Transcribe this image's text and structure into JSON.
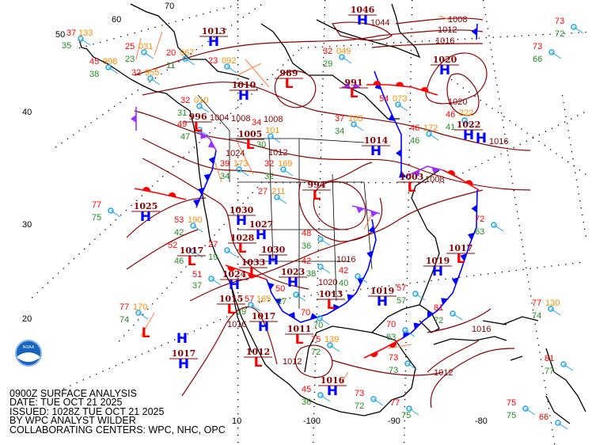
{
  "caption": {
    "title": "0900Z SURFACE ANALYSIS",
    "date": "DATE: TUE OCT 21 2025",
    "issued": "ISSUED: 1028Z TUE OCT 21 2025",
    "analyst": "BY WPC ANALYST WILDER",
    "centers": "COLLABORATING CENTERS: WPC, NHC, OPC"
  },
  "logo": {
    "text": "NOAA"
  },
  "graticule_labels": [
    "70",
    "60",
    "50",
    "40",
    "30",
    "20",
    "10",
    "-100",
    "-90",
    "-80"
  ],
  "colors": {
    "high": "#0000ff",
    "low": "#ff0000",
    "isobar": "#8b0000",
    "temperature": "#ff0000",
    "dewpoint": "#228b22",
    "pressure": "#ff8c00",
    "cold_front": "#0000ff",
    "warm_front": "#ff0000",
    "occluded_front": "#9b30ff",
    "trough": "#ff7f3f",
    "station": "#1ea7e8"
  },
  "pressure_centers": [
    {
      "type": "H",
      "value": "1013"
    },
    {
      "type": "H",
      "value": "1010"
    },
    {
      "type": "L",
      "value": "1005"
    },
    {
      "type": "L",
      "value": "996"
    },
    {
      "type": "L",
      "value": "989"
    },
    {
      "type": "H",
      "value": "1046"
    },
    {
      "type": "H",
      "value": "1020"
    },
    {
      "type": "L",
      "value": "991"
    },
    {
      "type": "H",
      "value": "1014"
    },
    {
      "type": "H",
      "value": "1022"
    },
    {
      "type": "L",
      "value": "1003"
    },
    {
      "type": "L",
      "value": "994"
    },
    {
      "type": "H",
      "value": "1025"
    },
    {
      "type": "H",
      "value": "1030"
    },
    {
      "type": "H",
      "value": "1027"
    },
    {
      "type": "L",
      "value": "1028"
    },
    {
      "type": "H",
      "value": "1030"
    },
    {
      "type": "L",
      "value": "1033"
    },
    {
      "type": "H",
      "value": "1024"
    },
    {
      "type": "L",
      "value": "1017"
    },
    {
      "type": "H",
      "value": "1023"
    },
    {
      "type": "L",
      "value": "1015"
    },
    {
      "type": "L",
      "value": "1013"
    },
    {
      "type": "H",
      "value": "1019"
    },
    {
      "type": "H",
      "value": "1019"
    },
    {
      "type": "L",
      "value": "1017"
    },
    {
      "type": "L",
      "value": ""
    },
    {
      "type": "H",
      "value": ""
    },
    {
      "type": "H",
      "value": "1017"
    },
    {
      "type": "L",
      "value": "1011"
    },
    {
      "type": "H",
      "value": "1016"
    },
    {
      "type": "L",
      "value": "1012"
    },
    {
      "type": "H",
      "value": "1017"
    },
    {
      "type": "H",
      "value": ""
    }
  ],
  "isobar_labels": [
    "1008",
    "1012",
    "1016",
    "1020",
    "1044",
    "1008",
    "1012",
    "1016",
    "1024",
    "1020",
    "1016",
    "1016",
    "1012",
    "1008",
    "1016",
    "1012",
    "1004",
    "1008"
  ],
  "stations": [
    {
      "temp": "37",
      "dew": "35",
      "press": "133"
    },
    {
      "temp": "45",
      "dew": "38",
      "press": "998"
    },
    {
      "temp": "25",
      "dew": "23",
      "press": "031"
    },
    {
      "temp": "32",
      "dew": "",
      "press": "955"
    },
    {
      "temp": "20",
      "dew": "11",
      "press": "067"
    },
    {
      "temp": "23",
      "dew": "",
      "press": "092"
    },
    {
      "temp": "32",
      "dew": "31",
      "press": "010"
    },
    {
      "temp": "49",
      "dew": "47",
      "press": ""
    },
    {
      "temp": "34",
      "dew": "30",
      "press": "101"
    },
    {
      "temp": "39",
      "dew": "34",
      "press": "173"
    },
    {
      "temp": "32",
      "dew": "32",
      "press": "169"
    },
    {
      "temp": "27",
      "dew": "",
      "press": "211"
    },
    {
      "temp": "53",
      "dew": "42",
      "press": "190"
    },
    {
      "temp": "52",
      "dew": "46",
      "press": ""
    },
    {
      "temp": "27",
      "dew": "19",
      "press": ""
    },
    {
      "temp": "51",
      "dew": "37",
      "press": ""
    },
    {
      "temp": "57",
      "dew": "29",
      "press": "165"
    },
    {
      "temp": "50",
      "dew": "27",
      "press": ""
    },
    {
      "temp": "77",
      "dew": "74",
      "press": "170"
    },
    {
      "temp": "70",
      "dew": "70",
      "press": ""
    },
    {
      "temp": "75",
      "dew": "72",
      "press": "139"
    },
    {
      "temp": "45",
      "dew": "36",
      "press": ""
    },
    {
      "temp": "73",
      "dew": "72",
      "press": ""
    },
    {
      "temp": "77",
      "dew": "75",
      "press": ""
    },
    {
      "temp": "57",
      "dew": "57",
      "press": ""
    },
    {
      "temp": "73",
      "dew": "73",
      "press": ""
    },
    {
      "temp": "81",
      "dew": "72",
      "press": ""
    },
    {
      "temp": "77",
      "dew": "74",
      "press": "130"
    },
    {
      "temp": "81",
      "dew": "77",
      "press": ""
    },
    {
      "temp": "75",
      "dew": "75",
      "press": ""
    },
    {
      "temp": "66",
      "dew": "",
      "press": ""
    },
    {
      "temp": "73",
      "dew": "72",
      "press": ""
    },
    {
      "temp": "73",
      "dew": "66",
      "press": ""
    },
    {
      "temp": "72",
      "dew": "63",
      "press": ""
    },
    {
      "temp": "37",
      "dew": "34",
      "press": "103"
    },
    {
      "temp": "48",
      "dew": "36",
      "press": ""
    },
    {
      "temp": "42",
      "dew": "38",
      "press": ""
    },
    {
      "temp": "42",
      "dew": "40",
      "press": ""
    },
    {
      "temp": "32",
      "dew": "29",
      "press": "049"
    },
    {
      "temp": "46",
      "dew": "41",
      "press": "222"
    },
    {
      "temp": "54",
      "dew": "",
      "press": "073"
    },
    {
      "temp": "46",
      "dew": "46",
      "press": "172"
    },
    {
      "temp": "77",
      "dew": "75",
      "press": ""
    },
    {
      "temp": "70",
      "dew": "63",
      "press": ""
    }
  ]
}
